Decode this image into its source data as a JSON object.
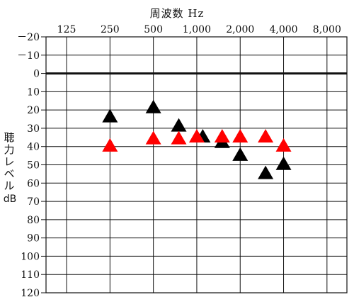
{
  "chart_data": {
    "type": "scatter",
    "title": "",
    "xlabel": "周波数 Hz",
    "ylabel": "聴力レベル",
    "ylabel_unit": "dB",
    "x_ticks": [
      {
        "hz": 125,
        "label": "125"
      },
      {
        "hz": 250,
        "label": "250"
      },
      {
        "hz": 500,
        "label": "500"
      },
      {
        "hz": 1000,
        "label": "1,000"
      },
      {
        "hz": 2000,
        "label": "2,000"
      },
      {
        "hz": 4000,
        "label": "4,000"
      },
      {
        "hz": 8000,
        "label": "8,000"
      }
    ],
    "x_scale": "log",
    "xlim": [
      90,
      11000
    ],
    "ylim": [
      -20,
      120
    ],
    "y_inverted": true,
    "y_ticks": [
      {
        "value": -20,
        "label": "－20"
      },
      {
        "value": -10,
        "label": "－10"
      },
      {
        "value": 0,
        "label": "0"
      },
      {
        "value": 10,
        "label": "10"
      },
      {
        "value": 20,
        "label": "20"
      },
      {
        "value": 30,
        "label": "30"
      },
      {
        "value": 40,
        "label": "40"
      },
      {
        "value": 50,
        "label": "50"
      },
      {
        "value": 60,
        "label": "60"
      },
      {
        "value": 70,
        "label": "70"
      },
      {
        "value": 80,
        "label": "80"
      },
      {
        "value": 90,
        "label": "90"
      },
      {
        "value": 100,
        "label": "100"
      },
      {
        "value": 110,
        "label": "110"
      },
      {
        "value": 120,
        "label": "120"
      }
    ],
    "grid": true,
    "reference_line_db": 0,
    "series": [
      {
        "color": "#000000",
        "marker": "triangle",
        "points": [
          {
            "x": 250,
            "y": 24
          },
          {
            "x": 500,
            "y": 19
          },
          {
            "x": 750,
            "y": 29
          },
          {
            "x": 1100,
            "y": 35
          },
          {
            "x": 1500,
            "y": 38
          },
          {
            "x": 2000,
            "y": 45
          },
          {
            "x": 3000,
            "y": 55
          },
          {
            "x": 4000,
            "y": 50
          }
        ]
      },
      {
        "color": "#ff0000",
        "marker": "triangle",
        "points": [
          {
            "x": 250,
            "y": 40
          },
          {
            "x": 500,
            "y": 36
          },
          {
            "x": 750,
            "y": 36
          },
          {
            "x": 1000,
            "y": 35
          },
          {
            "x": 1500,
            "y": 35
          },
          {
            "x": 2000,
            "y": 35
          },
          {
            "x": 3000,
            "y": 35
          },
          {
            "x": 4000,
            "y": 40
          }
        ]
      }
    ]
  }
}
